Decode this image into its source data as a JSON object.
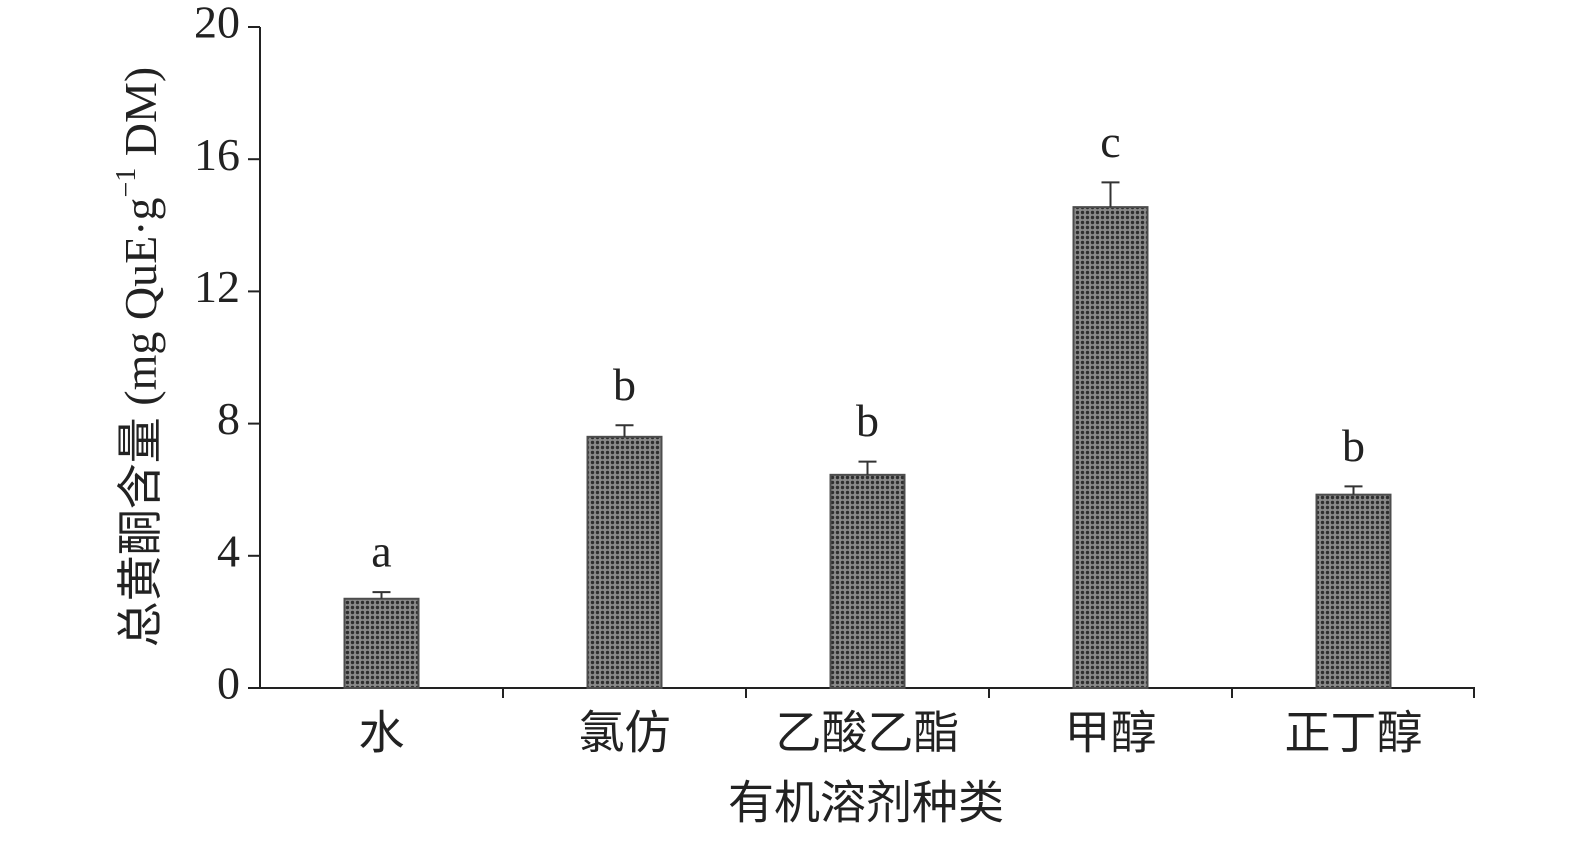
{
  "chart_data": {
    "type": "bar",
    "y_label": [
      "总黄酮含量 (mg QuE·g",
      "−1",
      " DM)"
    ],
    "x_label": "有机溶剂种类",
    "categories": [
      "水",
      "氯仿",
      "乙酸乙酯",
      "甲醇",
      "正丁醇"
    ],
    "values": [
      2.7,
      7.6,
      6.45,
      14.55,
      5.85
    ],
    "errors": [
      0.2,
      0.35,
      0.4,
      0.75,
      0.25
    ],
    "annotations": [
      "a",
      "b",
      "b",
      "c",
      "b"
    ],
    "color": "#4d4d4d",
    "ylim": [
      0,
      20
    ],
    "yticks": [
      0,
      4,
      8,
      12,
      16,
      20
    ]
  }
}
